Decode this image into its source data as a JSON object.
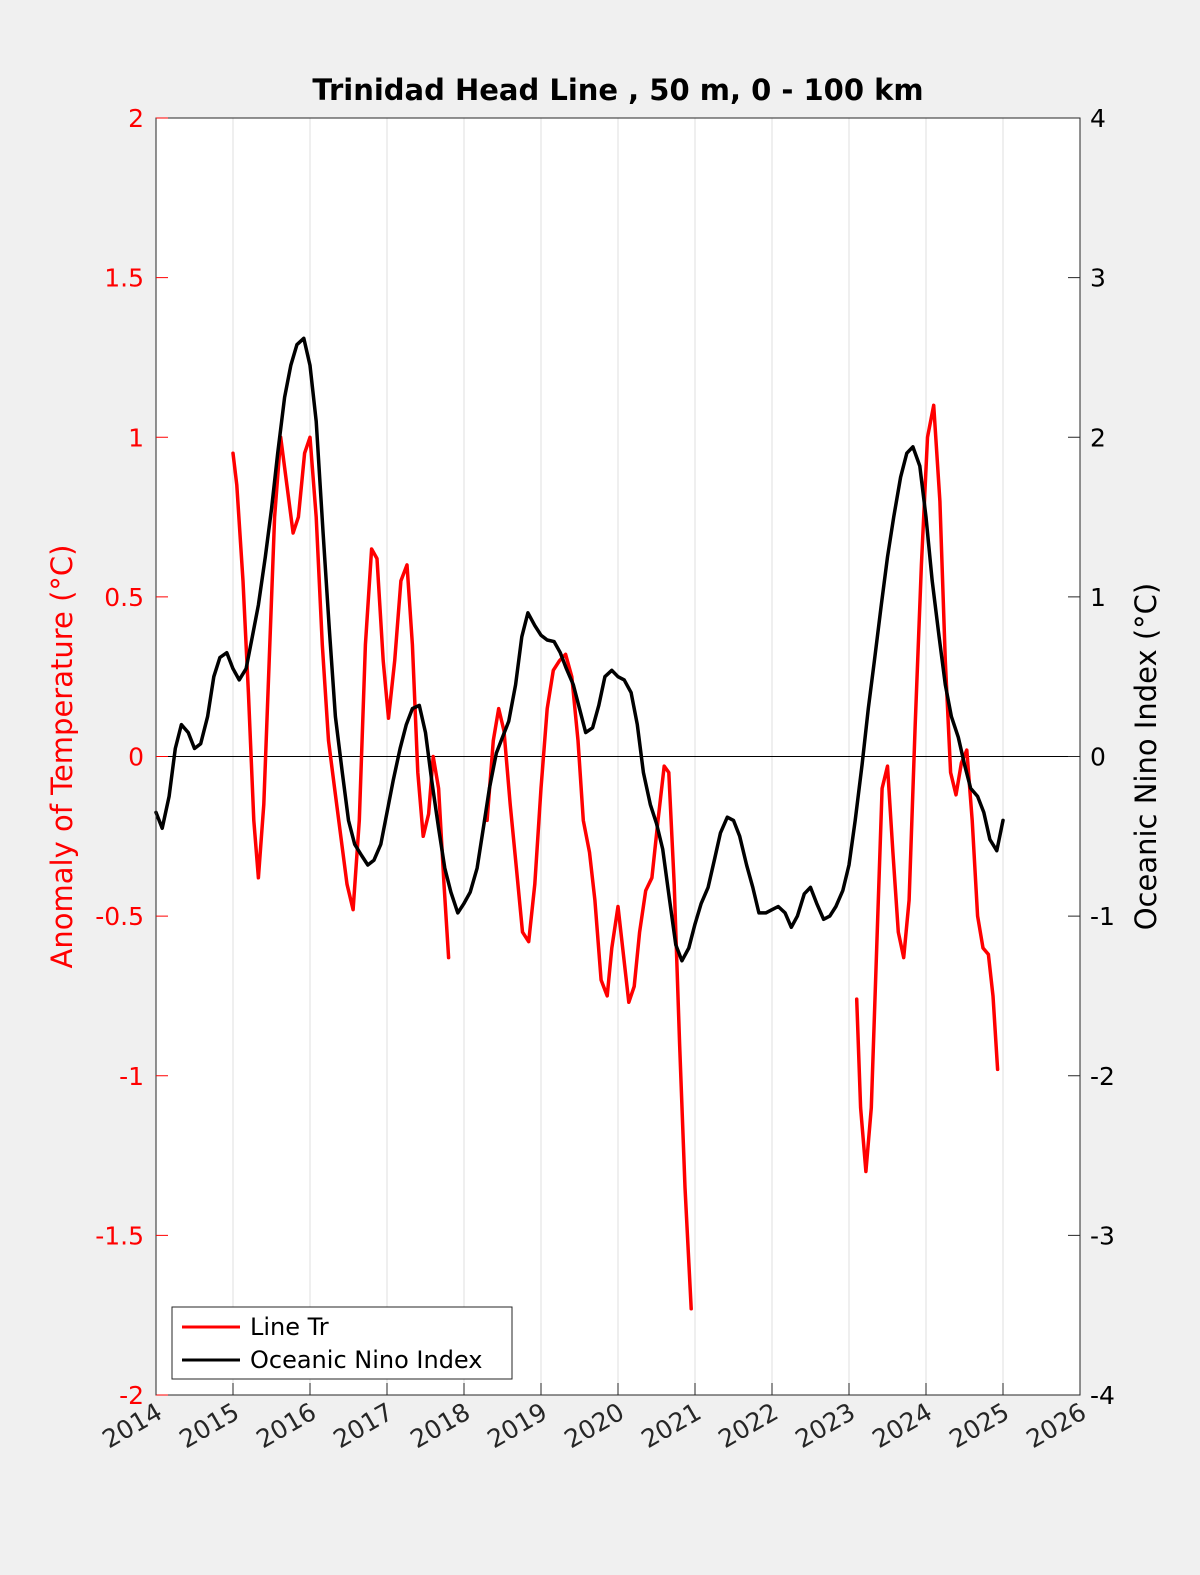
{
  "chart_data": {
    "type": "line",
    "title": "Trinidad Head Line , 50 m, 0 - 100 km",
    "ylabel_left": "Anomaly of Temperature (°C)",
    "ylabel_right": "Oceanic Nino Index (°C)",
    "xlim": [
      2014,
      2026
    ],
    "ylim_left": [
      -2,
      2
    ],
    "ylim_right": [
      -4,
      4
    ],
    "x_ticks": [
      "2014",
      "2015",
      "2016",
      "2017",
      "2018",
      "2019",
      "2020",
      "2021",
      "2022",
      "2023",
      "2024",
      "2025",
      "2026"
    ],
    "y_ticks_left": [
      "2",
      "1.5",
      "1",
      "0.5",
      "0",
      "-0.5",
      "-1",
      "-1.5",
      "-2"
    ],
    "y_ticks_right": [
      "4",
      "3",
      "2",
      "1",
      "0",
      "-1",
      "-2",
      "-3",
      "-4"
    ],
    "grid": "vertical",
    "legend_location": "bottom-left",
    "colors": {
      "line_tr": "#ff0000",
      "oni": "#000000",
      "left_axis": "#ff0000",
      "right_axis": "#000000"
    },
    "series": [
      {
        "name": "Line Tr",
        "axis": "left",
        "color": "#ff0000",
        "segments": [
          [
            [
              2015.0,
              0.95
            ],
            [
              2015.05,
              0.85
            ],
            [
              2015.13,
              0.55
            ],
            [
              2015.2,
              0.2
            ],
            [
              2015.27,
              -0.2
            ],
            [
              2015.33,
              -0.38
            ],
            [
              2015.4,
              -0.15
            ],
            [
              2015.47,
              0.3
            ],
            [
              2015.54,
              0.75
            ],
            [
              2015.62,
              1.0
            ],
            [
              2015.7,
              0.85
            ],
            [
              2015.78,
              0.7
            ],
            [
              2015.85,
              0.75
            ],
            [
              2015.93,
              0.95
            ],
            [
              2016.0,
              1.0
            ],
            [
              2016.08,
              0.75
            ],
            [
              2016.16,
              0.35
            ],
            [
              2016.24,
              0.05
            ],
            [
              2016.32,
              -0.1
            ],
            [
              2016.4,
              -0.25
            ],
            [
              2016.48,
              -0.4
            ],
            [
              2016.56,
              -0.48
            ],
            [
              2016.64,
              -0.2
            ],
            [
              2016.72,
              0.35
            ],
            [
              2016.8,
              0.65
            ],
            [
              2016.87,
              0.62
            ],
            [
              2016.95,
              0.3
            ],
            [
              2017.02,
              0.12
            ],
            [
              2017.1,
              0.3
            ],
            [
              2017.18,
              0.55
            ],
            [
              2017.26,
              0.6
            ],
            [
              2017.33,
              0.35
            ],
            [
              2017.4,
              -0.05
            ],
            [
              2017.47,
              -0.25
            ],
            [
              2017.54,
              -0.18
            ],
            [
              2017.6,
              0.0
            ],
            [
              2017.67,
              -0.1
            ],
            [
              2017.74,
              -0.4
            ],
            [
              2017.8,
              -0.63
            ]
          ],
          [
            [
              2018.3,
              -0.2
            ],
            [
              2018.38,
              0.05
            ],
            [
              2018.45,
              0.15
            ],
            [
              2018.52,
              0.08
            ],
            [
              2018.6,
              -0.15
            ],
            [
              2018.68,
              -0.35
            ],
            [
              2018.76,
              -0.55
            ],
            [
              2018.84,
              -0.58
            ],
            [
              2018.92,
              -0.4
            ],
            [
              2019.0,
              -0.1
            ],
            [
              2019.08,
              0.15
            ],
            [
              2019.16,
              0.27
            ],
            [
              2019.24,
              0.3
            ],
            [
              2019.32,
              0.32
            ],
            [
              2019.4,
              0.25
            ],
            [
              2019.48,
              0.05
            ],
            [
              2019.55,
              -0.2
            ],
            [
              2019.63,
              -0.3
            ],
            [
              2019.7,
              -0.45
            ],
            [
              2019.78,
              -0.7
            ],
            [
              2019.86,
              -0.75
            ],
            [
              2019.92,
              -0.6
            ],
            [
              2020.0,
              -0.47
            ],
            [
              2020.07,
              -0.62
            ],
            [
              2020.14,
              -0.77
            ],
            [
              2020.21,
              -0.72
            ],
            [
              2020.28,
              -0.55
            ],
            [
              2020.36,
              -0.42
            ],
            [
              2020.44,
              -0.38
            ],
            [
              2020.52,
              -0.2
            ],
            [
              2020.6,
              -0.03
            ],
            [
              2020.66,
              -0.05
            ],
            [
              2020.73,
              -0.4
            ],
            [
              2020.8,
              -0.9
            ],
            [
              2020.87,
              -1.35
            ],
            [
              2020.95,
              -1.73
            ]
          ],
          [
            [
              2023.1,
              -0.76
            ],
            [
              2023.15,
              -1.1
            ],
            [
              2023.22,
              -1.3
            ],
            [
              2023.29,
              -1.1
            ],
            [
              2023.36,
              -0.6
            ],
            [
              2023.43,
              -0.1
            ],
            [
              2023.5,
              -0.03
            ],
            [
              2023.57,
              -0.3
            ],
            [
              2023.64,
              -0.55
            ],
            [
              2023.71,
              -0.63
            ],
            [
              2023.78,
              -0.45
            ],
            [
              2023.86,
              0.1
            ],
            [
              2023.94,
              0.6
            ],
            [
              2024.02,
              1.0
            ],
            [
              2024.1,
              1.1
            ],
            [
              2024.18,
              0.8
            ],
            [
              2024.25,
              0.3
            ],
            [
              2024.32,
              -0.05
            ],
            [
              2024.39,
              -0.12
            ],
            [
              2024.46,
              -0.02
            ],
            [
              2024.53,
              0.02
            ],
            [
              2024.6,
              -0.2
            ],
            [
              2024.67,
              -0.5
            ],
            [
              2024.74,
              -0.6
            ],
            [
              2024.81,
              -0.62
            ],
            [
              2024.87,
              -0.75
            ],
            [
              2024.93,
              -0.98
            ]
          ]
        ]
      },
      {
        "name": "Oceanic Nino Index",
        "axis": "right",
        "color": "#000000",
        "segments": [
          [
            [
              2014.0,
              -0.35
            ],
            [
              2014.08,
              -0.45
            ],
            [
              2014.17,
              -0.25
            ],
            [
              2014.25,
              0.05
            ],
            [
              2014.33,
              0.2
            ],
            [
              2014.42,
              0.15
            ],
            [
              2014.5,
              0.05
            ],
            [
              2014.58,
              0.08
            ],
            [
              2014.67,
              0.25
            ],
            [
              2014.75,
              0.5
            ],
            [
              2014.83,
              0.62
            ],
            [
              2014.92,
              0.65
            ],
            [
              2015.0,
              0.55
            ],
            [
              2015.08,
              0.48
            ],
            [
              2015.17,
              0.55
            ],
            [
              2015.25,
              0.75
            ],
            [
              2015.33,
              0.95
            ],
            [
              2015.42,
              1.25
            ],
            [
              2015.5,
              1.55
            ],
            [
              2015.58,
              1.9
            ],
            [
              2015.67,
              2.25
            ],
            [
              2015.75,
              2.45
            ],
            [
              2015.83,
              2.58
            ],
            [
              2015.92,
              2.62
            ],
            [
              2016.0,
              2.45
            ],
            [
              2016.08,
              2.1
            ],
            [
              2016.17,
              1.4
            ],
            [
              2016.25,
              0.8
            ],
            [
              2016.33,
              0.25
            ],
            [
              2016.42,
              -0.1
            ],
            [
              2016.5,
              -0.4
            ],
            [
              2016.58,
              -0.55
            ],
            [
              2016.67,
              -0.62
            ],
            [
              2016.75,
              -0.68
            ],
            [
              2016.83,
              -0.65
            ],
            [
              2016.92,
              -0.55
            ],
            [
              2017.0,
              -0.35
            ],
            [
              2017.08,
              -0.15
            ],
            [
              2017.17,
              0.05
            ],
            [
              2017.25,
              0.2
            ],
            [
              2017.33,
              0.3
            ],
            [
              2017.42,
              0.32
            ],
            [
              2017.5,
              0.15
            ],
            [
              2017.58,
              -0.15
            ],
            [
              2017.67,
              -0.45
            ],
            [
              2017.75,
              -0.7
            ],
            [
              2017.83,
              -0.85
            ],
            [
              2017.92,
              -0.98
            ],
            [
              2018.0,
              -0.92
            ],
            [
              2018.08,
              -0.85
            ],
            [
              2018.17,
              -0.7
            ],
            [
              2018.25,
              -0.45
            ],
            [
              2018.33,
              -0.2
            ],
            [
              2018.42,
              0.02
            ],
            [
              2018.5,
              0.12
            ],
            [
              2018.58,
              0.22
            ],
            [
              2018.67,
              0.45
            ],
            [
              2018.75,
              0.75
            ],
            [
              2018.83,
              0.9
            ],
            [
              2018.92,
              0.82
            ],
            [
              2019.0,
              0.76
            ],
            [
              2019.08,
              0.73
            ],
            [
              2019.17,
              0.72
            ],
            [
              2019.25,
              0.65
            ],
            [
              2019.33,
              0.55
            ],
            [
              2019.42,
              0.45
            ],
            [
              2019.5,
              0.3
            ],
            [
              2019.58,
              0.15
            ],
            [
              2019.67,
              0.18
            ],
            [
              2019.75,
              0.32
            ],
            [
              2019.83,
              0.5
            ],
            [
              2019.92,
              0.54
            ],
            [
              2020.0,
              0.5
            ],
            [
              2020.08,
              0.48
            ],
            [
              2020.17,
              0.4
            ],
            [
              2020.25,
              0.2
            ],
            [
              2020.33,
              -0.1
            ],
            [
              2020.42,
              -0.3
            ],
            [
              2020.5,
              -0.42
            ],
            [
              2020.58,
              -0.58
            ],
            [
              2020.67,
              -0.9
            ],
            [
              2020.75,
              -1.18
            ],
            [
              2020.83,
              -1.28
            ],
            [
              2020.92,
              -1.2
            ],
            [
              2021.0,
              -1.05
            ],
            [
              2021.08,
              -0.92
            ],
            [
              2021.17,
              -0.82
            ],
            [
              2021.25,
              -0.65
            ],
            [
              2021.33,
              -0.48
            ],
            [
              2021.42,
              -0.38
            ],
            [
              2021.5,
              -0.4
            ],
            [
              2021.58,
              -0.5
            ],
            [
              2021.67,
              -0.68
            ],
            [
              2021.75,
              -0.82
            ],
            [
              2021.83,
              -0.98
            ],
            [
              2021.92,
              -0.98
            ],
            [
              2022.0,
              -0.96
            ],
            [
              2022.08,
              -0.94
            ],
            [
              2022.17,
              -0.98
            ],
            [
              2022.25,
              -1.07
            ],
            [
              2022.33,
              -1.0
            ],
            [
              2022.42,
              -0.86
            ],
            [
              2022.5,
              -0.82
            ],
            [
              2022.58,
              -0.92
            ],
            [
              2022.67,
              -1.02
            ],
            [
              2022.75,
              -1.0
            ],
            [
              2022.83,
              -0.94
            ],
            [
              2022.92,
              -0.84
            ],
            [
              2023.0,
              -0.68
            ],
            [
              2023.08,
              -0.4
            ],
            [
              2023.17,
              -0.05
            ],
            [
              2023.25,
              0.3
            ],
            [
              2023.33,
              0.6
            ],
            [
              2023.42,
              0.95
            ],
            [
              2023.5,
              1.25
            ],
            [
              2023.58,
              1.5
            ],
            [
              2023.67,
              1.75
            ],
            [
              2023.75,
              1.9
            ],
            [
              2023.83,
              1.94
            ],
            [
              2023.92,
              1.82
            ],
            [
              2024.0,
              1.5
            ],
            [
              2024.08,
              1.1
            ],
            [
              2024.17,
              0.75
            ],
            [
              2024.25,
              0.45
            ],
            [
              2024.33,
              0.25
            ],
            [
              2024.42,
              0.12
            ],
            [
              2024.5,
              -0.05
            ],
            [
              2024.58,
              -0.2
            ],
            [
              2024.67,
              -0.25
            ],
            [
              2024.75,
              -0.35
            ],
            [
              2024.83,
              -0.52
            ],
            [
              2024.92,
              -0.59
            ],
            [
              2025.0,
              -0.4
            ]
          ]
        ]
      }
    ]
  }
}
